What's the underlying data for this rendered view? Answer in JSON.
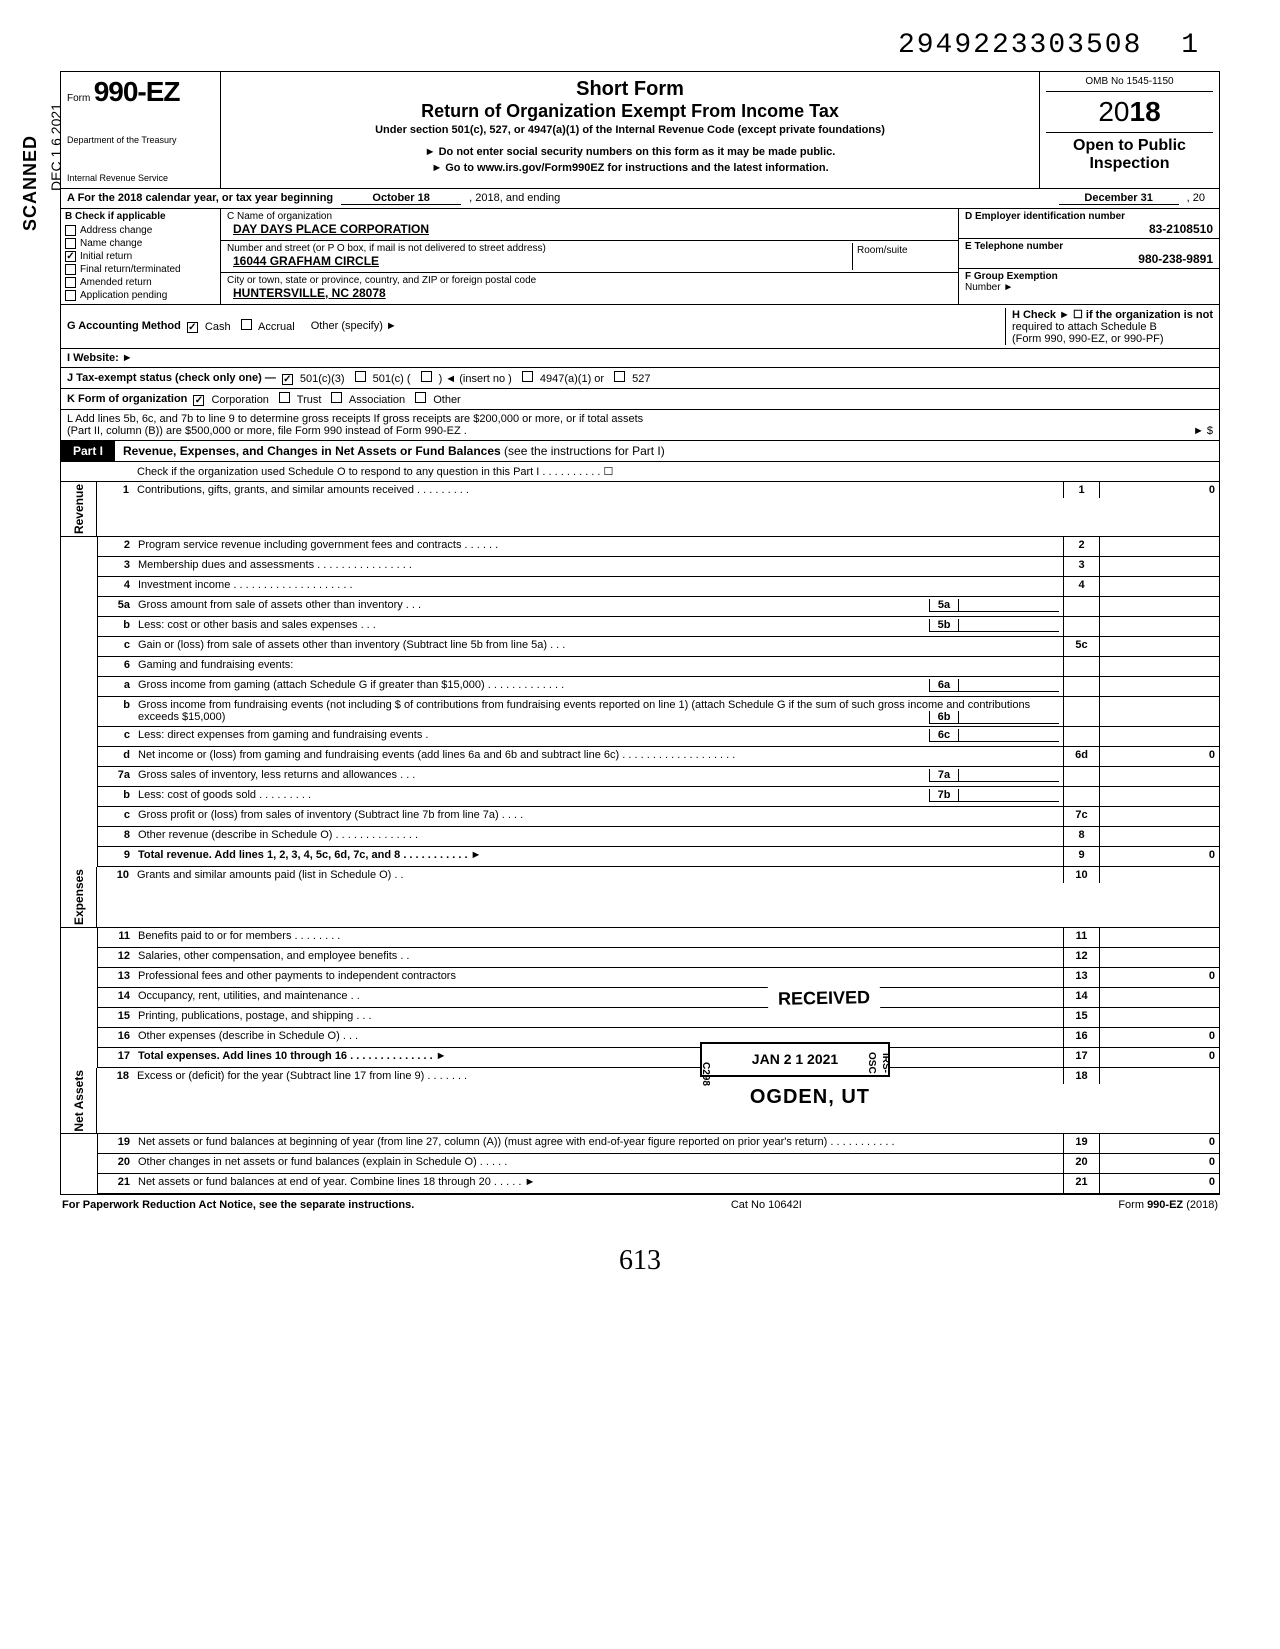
{
  "top_number": "2949223303508",
  "top_number_trail": "1",
  "side_scanned": "SCANNED",
  "side_date": "DEC 1 6 2021",
  "header": {
    "form_prefix": "Form",
    "form_no": "990-EZ",
    "dept1": "Department of the Treasury",
    "dept2": "Internal Revenue Service",
    "title1": "Short Form",
    "title2": "Return of Organization Exempt From Income Tax",
    "subtitle": "Under section 501(c), 527, or 4947(a)(1) of the Internal Revenue Code (except private foundations)",
    "note1": "► Do not enter social security numbers on this form as it may be made public.",
    "note2": "► Go to www.irs.gov/Form990EZ for instructions and the latest information.",
    "omb": "OMB No 1545-1150",
    "year_outline": "20",
    "year_bold": "18",
    "open1": "Open to Public",
    "open2": "Inspection"
  },
  "lineA": {
    "label": "A For the 2018 calendar year, or tax year beginning",
    "begin": "October 18",
    "mid": ", 2018, and ending",
    "end": "December 31",
    "endyr": ", 20"
  },
  "colB": {
    "header": "B Check if applicable",
    "items": [
      {
        "label": "Address change",
        "checked": false
      },
      {
        "label": "Name change",
        "checked": false
      },
      {
        "label": "Initial return",
        "checked": true
      },
      {
        "label": "Final return/terminated",
        "checked": false
      },
      {
        "label": "Amended return",
        "checked": false
      },
      {
        "label": "Application pending",
        "checked": false
      }
    ]
  },
  "colC": {
    "label_name": "C  Name of organization",
    "name": "DAY DAYS PLACE CORPORATION",
    "label_addr": "Number and street (or P O box, if mail is not delivered to street address)",
    "room_label": "Room/suite",
    "addr": "16044 GRAFHAM CIRCLE",
    "label_city": "City or town, state or province, country, and ZIP or foreign postal code",
    "city": "HUNTERSVILLE, NC 28078"
  },
  "colD": {
    "label": "D Employer identification number",
    "value": "83-2108510"
  },
  "colE": {
    "label": "E Telephone number",
    "value": "980-238-9891"
  },
  "colF": {
    "label": "F Group Exemption",
    "label2": "Number ►",
    "value": ""
  },
  "lineG": {
    "label": "G Accounting Method",
    "opts": [
      {
        "label": "Cash",
        "checked": true
      },
      {
        "label": "Accrual",
        "checked": false
      }
    ],
    "other": "Other (specify) ►"
  },
  "lineH": {
    "label": "H Check ► ☐ if the organization is not",
    "label2": "required to attach Schedule B",
    "label3": "(Form 990, 990-EZ, or 990-PF)"
  },
  "lineI": {
    "label": "I  Website: ►"
  },
  "lineJ": {
    "label": "J Tax-exempt status (check only one) —",
    "opts": [
      {
        "label": "501(c)(3)",
        "checked": true
      },
      {
        "label": "501(c) (",
        "checked": false
      },
      {
        "label": ") ◄ (insert no )",
        "checked": false
      },
      {
        "label": "4947(a)(1) or",
        "checked": false
      },
      {
        "label": "527",
        "checked": false
      }
    ]
  },
  "lineK": {
    "label": "K Form of organization",
    "opts": [
      {
        "label": "Corporation",
        "checked": true
      },
      {
        "label": "Trust",
        "checked": false
      },
      {
        "label": "Association",
        "checked": false
      },
      {
        "label": "Other",
        "checked": false
      }
    ]
  },
  "lineL": {
    "text1": "L Add lines 5b, 6c, and 7b to line 9 to determine gross receipts If gross receipts are $200,000 or more, or if total assets",
    "text2": "(Part II, column (B)) are $500,000 or more, file Form 990 instead of Form 990-EZ .",
    "arrow": "► $"
  },
  "part1": {
    "tab": "Part I",
    "title": "Revenue, Expenses, and Changes in Net Assets or Fund Balances",
    "title_note": " (see the instructions for Part I)",
    "check_line": "Check if the organization used Schedule O to respond to any question in this Part I . . . . . . . . . . ☐"
  },
  "sidecats": {
    "revenue": "Revenue",
    "expenses": "Expenses",
    "netassets": "Net Assets"
  },
  "lines": [
    {
      "n": "1",
      "d": "Contributions, gifts, grants, and similar amounts received . . . . . . . . .",
      "i": "1",
      "a": "0"
    },
    {
      "n": "2",
      "d": "Program service revenue including government fees and contracts . . . . . .",
      "i": "2",
      "a": ""
    },
    {
      "n": "3",
      "d": "Membership dues and assessments . . . . . . . . . . . . . . . .",
      "i": "3",
      "a": ""
    },
    {
      "n": "4",
      "d": "Investment income . . . . . . . . . . . . . . . . . . . .",
      "i": "4",
      "a": ""
    },
    {
      "n": "5a",
      "d": "Gross amount from sale of assets other than inventory . . .",
      "inner": "5a",
      "i": "",
      "a": ""
    },
    {
      "n": "b",
      "d": "Less: cost or other basis and sales expenses . . .",
      "inner": "5b",
      "i": "",
      "a": ""
    },
    {
      "n": "c",
      "d": "Gain or (loss) from sale of assets other than inventory (Subtract line 5b from line 5a) . . .",
      "i": "5c",
      "a": ""
    },
    {
      "n": "6",
      "d": "Gaming and fundraising events:",
      "i": "",
      "a": ""
    },
    {
      "n": "a",
      "d": "Gross income from gaming (attach Schedule G if greater than $15,000) . . . . . . . . . . . . .",
      "inner": "6a",
      "i": "",
      "a": ""
    },
    {
      "n": "b",
      "d": "Gross income from fundraising events (not including  $                of contributions from fundraising events reported on line 1) (attach Schedule G if the sum of such gross income and contributions exceeds $15,000)",
      "inner": "6b",
      "i": "",
      "a": ""
    },
    {
      "n": "c",
      "d": "Less: direct expenses from gaming and fundraising events .",
      "inner": "6c",
      "i": "",
      "a": ""
    },
    {
      "n": "d",
      "d": "Net income or (loss) from gaming and fundraising events (add lines 6a and 6b and subtract line 6c) . . . . . . . . . . . . . . . . . . .",
      "i": "6d",
      "a": "0"
    },
    {
      "n": "7a",
      "d": "Gross sales of inventory, less returns and allowances . . .",
      "inner": "7a",
      "i": "",
      "a": ""
    },
    {
      "n": "b",
      "d": "Less: cost of goods sold . . . . . . . . .",
      "inner": "7b",
      "i": "",
      "a": ""
    },
    {
      "n": "c",
      "d": "Gross profit or (loss) from sales of inventory (Subtract line 7b from line 7a) . . . .",
      "i": "7c",
      "a": ""
    },
    {
      "n": "8",
      "d": "Other revenue (describe in Schedule O) . . . . . . . . . . . . . .",
      "i": "8",
      "a": ""
    },
    {
      "n": "9",
      "d": "Total revenue. Add lines 1, 2, 3, 4, 5c, 6d, 7c, and 8 . . . . . . . . . . . ►",
      "i": "9",
      "a": "0",
      "bold": true
    },
    {
      "n": "10",
      "d": "Grants and similar amounts paid (list in Schedule O) . .",
      "i": "10",
      "a": ""
    },
    {
      "n": "11",
      "d": "Benefits paid to or for members . . . . . . . .",
      "i": "11",
      "a": ""
    },
    {
      "n": "12",
      "d": "Salaries, other compensation, and employee benefits . .",
      "i": "12",
      "a": ""
    },
    {
      "n": "13",
      "d": "Professional fees and other payments to independent contractors",
      "i": "13",
      "a": "0"
    },
    {
      "n": "14",
      "d": "Occupancy, rent, utilities, and maintenance . .",
      "i": "14",
      "a": ""
    },
    {
      "n": "15",
      "d": "Printing, publications, postage, and shipping . . .",
      "i": "15",
      "a": ""
    },
    {
      "n": "16",
      "d": "Other expenses (describe in Schedule O) . . .",
      "i": "16",
      "a": "0"
    },
    {
      "n": "17",
      "d": "Total expenses. Add lines 10 through 16 . . . . . . . . . . . . . . ►",
      "i": "17",
      "a": "0",
      "bold": true
    },
    {
      "n": "18",
      "d": "Excess or (deficit) for the year (Subtract line 17 from line 9) . . . . . . .",
      "i": "18",
      "a": ""
    },
    {
      "n": "19",
      "d": "Net assets or fund balances at beginning of year (from line 27, column (A)) (must agree with end-of-year figure reported on prior year's return) . . . . . . . . . . .",
      "i": "19",
      "a": "0"
    },
    {
      "n": "20",
      "d": "Other changes in net assets or fund balances (explain in Schedule O) . . . . .",
      "i": "20",
      "a": "0"
    },
    {
      "n": "21",
      "d": "Net assets or fund balances at end of year. Combine lines 18 through 20 . . . . . ►",
      "i": "21",
      "a": "0"
    }
  ],
  "section_ranges": {
    "revenue": [
      0,
      16
    ],
    "expenses": [
      17,
      24
    ],
    "netassets": [
      25,
      28
    ]
  },
  "stamps": {
    "received": "RECEIVED",
    "date": "JAN 2 1 2021",
    "vside": "IRS-OSC",
    "vside2": "C298",
    "ogden": "OGDEN, UT"
  },
  "footer": {
    "left": "For Paperwork Reduction Act Notice, see the separate instructions.",
    "mid": "Cat No 10642I",
    "right": "Form 990-EZ (2018)"
  },
  "handwritten": "613"
}
